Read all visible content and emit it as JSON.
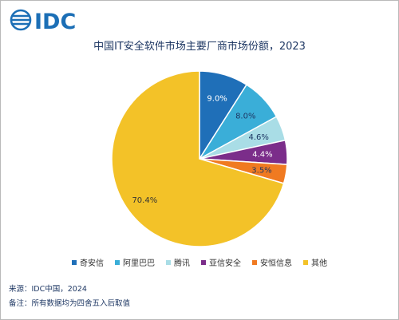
{
  "brand": {
    "logo_text": "IDC"
  },
  "chart_data": {
    "type": "pie",
    "title": "中国IT安全软件市场主要厂商市场份额，2023",
    "categories": [
      "奇安信",
      "阿里巴巴",
      "腾讯",
      "亚信安全",
      "安恒信息",
      "其他"
    ],
    "values": [
      9.0,
      8.0,
      4.6,
      4.4,
      3.5,
      70.4
    ],
    "data_labels": [
      "9.0%",
      "8.0%",
      "4.6%",
      "4.4%",
      "3.5%",
      "70.4%"
    ],
    "colors": [
      "#1f6fb8",
      "#3aaed8",
      "#a9dde6",
      "#7b2d8a",
      "#f07a21",
      "#f3c228"
    ],
    "label_colors": [
      "#ffffff",
      "#1f3864",
      "#1f3864",
      "#ffffff",
      "#1f3864",
      "#333333"
    ],
    "legend_position": "bottom"
  },
  "footer": {
    "source": "来源：IDC中国，2024",
    "note": "备注：所有数据均为四舍五入后取值"
  }
}
